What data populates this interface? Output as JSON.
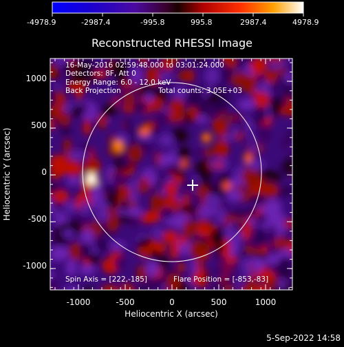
{
  "colorbar": {
    "ticks": [
      "-4978.9",
      "-2987.4",
      "-995.8",
      "995.8",
      "2987.4",
      "4978.9"
    ]
  },
  "plot": {
    "title": "Reconstructed RHESSI Image",
    "xlabel": "Heliocentric X (arcsec)",
    "ylabel": "Heliocentric Y (arcsec)",
    "xticks": [
      "-1000",
      "-500",
      "0",
      "500",
      "1000"
    ],
    "yticks": [
      "1000",
      "500",
      "0",
      "-500",
      "-1000"
    ],
    "info": {
      "time": "16-May-2016 02:59:48.000 to 03:01:24.000",
      "detectors": "Detectors: 8F, Att 0",
      "energy": "Energy Range: 6.0 - 12.0 keV",
      "method": "Back Projection",
      "counts": "Total counts: 3.05E+03",
      "spin_axis": "Spin Axis = [222,-185]",
      "flare_position": "Flare Position = [-853,-83]"
    }
  },
  "footer": {
    "date": "5-Sep-2022 14:58"
  }
}
